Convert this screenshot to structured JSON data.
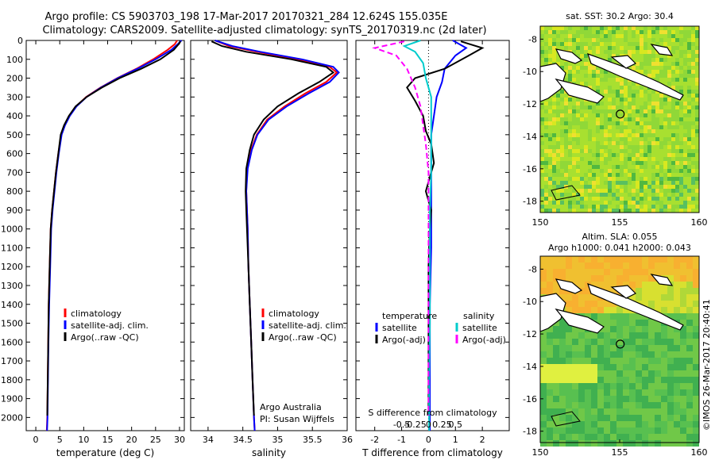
{
  "title_line1": "Argo profile: CS 5903703_198 17-Mar-2017 20170321_284 12.624S 155.035E",
  "title_line2": "Climatology: CARS2009. Satellite-adjusted climatology: synTS_20170319.nc (2d later)",
  "credit": "©IMOS 26-Mar-2017 20:40:41",
  "chart_data": [
    {
      "type": "line",
      "name": "temperature",
      "xlabel": "temperature (deg C)",
      "ylabel": "",
      "xlim": [
        -2,
        31
      ],
      "ylim": [
        2070,
        0
      ],
      "xticks": [
        0,
        5,
        10,
        15,
        20,
        25,
        30
      ],
      "yticks": [
        0,
        100,
        200,
        300,
        400,
        500,
        600,
        700,
        800,
        900,
        1000,
        1100,
        1200,
        1300,
        1400,
        1500,
        1600,
        1700,
        1800,
        1900,
        2000
      ],
      "legend": [
        "climatology",
        "satellite-adj. clim.",
        "Argo(..raw -QC)"
      ],
      "legend_position": "lower-center",
      "series": [
        {
          "name": "climatology",
          "color": "#ff0000",
          "x": [
            29.5,
            29.0,
            27.5,
            24.5,
            21.0,
            17.0,
            13.5,
            10.5,
            8.4,
            7.0,
            6.0,
            5.3,
            4.7,
            4.2,
            3.8,
            3.4,
            3.1,
            2.9,
            2.7,
            2.6,
            2.5,
            2.4,
            2.3
          ],
          "y": [
            0,
            20,
            50,
            100,
            150,
            200,
            250,
            300,
            350,
            400,
            450,
            500,
            600,
            700,
            800,
            900,
            1000,
            1200,
            1400,
            1600,
            1800,
            2000,
            2070
          ]
        },
        {
          "name": "satellite-adj. clim.",
          "color": "#0000ff",
          "x": [
            30.4,
            29.6,
            28.3,
            25.0,
            21.2,
            17.1,
            13.6,
            10.6,
            8.5,
            7.1,
            6.1,
            5.4,
            4.8,
            4.3,
            3.9,
            3.5,
            3.2,
            3.0,
            2.8,
            2.65,
            2.55,
            2.45,
            2.35
          ],
          "y": [
            0,
            20,
            50,
            100,
            150,
            200,
            250,
            300,
            350,
            400,
            450,
            500,
            600,
            700,
            800,
            900,
            1000,
            1200,
            1400,
            1600,
            1800,
            2000,
            2070
          ]
        },
        {
          "name": "Argo(..raw -QC)",
          "color": "#000000",
          "x": [
            30.2,
            29.8,
            28.8,
            26.0,
            22.0,
            17.5,
            13.8,
            10.6,
            8.3,
            6.9,
            5.9,
            5.2,
            4.7,
            4.2,
            3.8,
            3.4,
            3.1,
            2.9,
            2.7,
            2.6,
            2.5,
            2.4
          ],
          "y": [
            5,
            20,
            50,
            100,
            150,
            200,
            250,
            300,
            350,
            400,
            450,
            500,
            600,
            700,
            800,
            900,
            1000,
            1200,
            1400,
            1600,
            1800,
            1990
          ]
        }
      ]
    },
    {
      "type": "line",
      "name": "salinity",
      "xlabel": "salinity",
      "ylabel": "",
      "xlim": [
        33.75,
        36.0
      ],
      "ylim": [
        2070,
        0
      ],
      "xticks": [
        34,
        34.5,
        35,
        35.5,
        36
      ],
      "legend": [
        "climatology",
        "satellite-adj. clim.",
        "Argo(..raw -QC)"
      ],
      "legend_position": "lower-center",
      "annotation": [
        "Argo Australia",
        "PI: Susan Wijffels"
      ],
      "series": [
        {
          "name": "climatology",
          "color": "#ff0000",
          "x": [
            34.1,
            34.3,
            34.7,
            35.3,
            35.75,
            35.85,
            35.7,
            35.4,
            35.1,
            34.85,
            34.7,
            34.62,
            34.56,
            34.55,
            34.56,
            34.57,
            34.58,
            34.6,
            34.62,
            34.64,
            34.66,
            34.67
          ],
          "y": [
            0,
            30,
            60,
            100,
            140,
            170,
            220,
            280,
            350,
            420,
            500,
            580,
            680,
            800,
            900,
            1000,
            1200,
            1400,
            1600,
            1800,
            2000,
            2070
          ]
        },
        {
          "name": "satellite-adj. clim.",
          "color": "#0000ff",
          "x": [
            34.1,
            34.35,
            34.75,
            35.35,
            35.8,
            35.88,
            35.75,
            35.45,
            35.13,
            34.87,
            34.71,
            34.63,
            34.57,
            34.55,
            34.56,
            34.57,
            34.58,
            34.6,
            34.62,
            34.64,
            34.66,
            34.67
          ],
          "y": [
            0,
            30,
            60,
            100,
            140,
            170,
            220,
            280,
            350,
            420,
            500,
            580,
            680,
            800,
            900,
            1000,
            1200,
            1400,
            1600,
            1800,
            2000,
            2070
          ]
        },
        {
          "name": "Argo(..raw -QC)",
          "color": "#000000",
          "x": [
            34.05,
            34.2,
            34.55,
            35.2,
            35.7,
            35.8,
            35.6,
            35.3,
            35.0,
            34.8,
            34.66,
            34.6,
            34.55,
            34.54,
            34.55,
            34.56,
            34.58,
            34.6,
            34.62,
            34.64,
            34.66
          ],
          "y": [
            5,
            30,
            60,
            100,
            140,
            170,
            220,
            280,
            350,
            420,
            500,
            580,
            680,
            800,
            900,
            1000,
            1200,
            1400,
            1600,
            1800,
            1990
          ]
        }
      ]
    },
    {
      "type": "line",
      "name": "differences",
      "xlabel": "T difference from climatology",
      "xlabel_top": "S difference from climatology",
      "xlim": [
        -2.7,
        3.0
      ],
      "ylim": [
        2070,
        0
      ],
      "xticks": [
        -2,
        -1,
        0,
        1,
        2
      ],
      "xticks_s": [
        -0.5,
        -0.25,
        0,
        0.25,
        0.5
      ],
      "xticks_s_labels": [
        "-0.5",
        "-0.25",
        "0",
        "0.25",
        "0.5"
      ],
      "legend_left_title": "temperature",
      "legend_right_title": "salinity",
      "legend": [
        "satellite",
        "Argo(-adj)",
        "satellite",
        "Argo(-adj)"
      ],
      "series": [
        {
          "name": "temperature satellite",
          "color": "#0000ff",
          "x": [
            0.9,
            1.4,
            1.0,
            0.6,
            0.5,
            0.3,
            0.2,
            0.1,
            0.1,
            0.1,
            0.1,
            0.1,
            0.05,
            0.05,
            0.05,
            0.05
          ],
          "y": [
            0,
            40,
            80,
            150,
            220,
            300,
            400,
            500,
            600,
            700,
            900,
            1100,
            1400,
            1700,
            2000,
            2070
          ]
        },
        {
          "name": "temperature Argo(-adj)",
          "color": "#000000",
          "x": [
            1.2,
            2.0,
            1.5,
            0.6,
            -0.5,
            -0.8,
            -0.5,
            -0.2,
            -0.1,
            0.1,
            0.2,
            -0.1,
            0.1,
            0.05,
            0.0,
            0.0,
            0.0,
            0.0,
            0.0
          ],
          "y": [
            5,
            40,
            80,
            150,
            200,
            250,
            320,
            400,
            480,
            550,
            650,
            800,
            900,
            1000,
            1200,
            1400,
            1600,
            1800,
            1990
          ]
        },
        {
          "name": "salinity satellite",
          "color": "#00cccc",
          "x": [
            -0.3,
            -0.9,
            -0.5,
            -0.2,
            -0.1,
            0.1,
            0.1,
            0.1,
            0.1,
            0.05,
            0.05,
            0.05,
            0.02,
            0.02
          ],
          "y": [
            0,
            30,
            60,
            120,
            200,
            300,
            400,
            500,
            700,
            900,
            1200,
            1500,
            1800,
            2070
          ]
        },
        {
          "name": "salinity Argo(-adj)",
          "color": "#ff00ff",
          "x": [
            -0.9,
            -2.0,
            -1.2,
            -0.8,
            -0.5,
            -0.3,
            -0.2,
            -0.1,
            0.0,
            0.0,
            0.0,
            0.0,
            0.0
          ],
          "y": [
            5,
            40,
            80,
            150,
            250,
            350,
            450,
            550,
            700,
            900,
            1200,
            1500,
            1990
          ]
        }
      ]
    },
    {
      "type": "heatmap",
      "name": "sst-map",
      "title": "sat. SST: 30.2 Argo: 30.4",
      "xlim": [
        150,
        160
      ],
      "ylim": [
        -18.7,
        -7.2
      ],
      "xticks": [
        150,
        155,
        160
      ],
      "yticks": [
        -8,
        -10,
        -12,
        -14,
        -16,
        -18
      ],
      "marker": {
        "x": 155.035,
        "y": -12.624
      }
    },
    {
      "type": "heatmap",
      "name": "sla-map",
      "title": "Altim. SLA: 0.055",
      "subtitle": "Argo h1000: 0.041 h2000: 0.043",
      "xlim": [
        150,
        160
      ],
      "ylim": [
        -18.7,
        -7.2
      ],
      "xticks": [
        150,
        155,
        160
      ],
      "yticks": [
        -8,
        -10,
        -12,
        -14,
        -16,
        -18
      ],
      "marker": {
        "x": 155.035,
        "y": -12.624
      }
    }
  ]
}
